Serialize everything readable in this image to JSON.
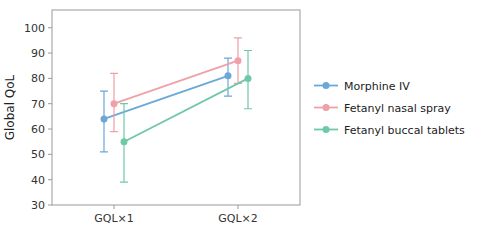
{
  "chart_data": {
    "type": "line",
    "marker": "circle",
    "grid": false,
    "legend": "right",
    "ylabel": "Global QoL",
    "categories": [
      "GQL×1",
      "GQL×2"
    ],
    "ylim": [
      30,
      107
    ],
    "yticks": [
      30,
      40,
      50,
      60,
      70,
      80,
      90,
      100
    ],
    "series": [
      {
        "name": "Morphine IV",
        "color": "#6aa8d8",
        "values": [
          64,
          81
        ],
        "ci_low": [
          51,
          73
        ],
        "ci_high": [
          75,
          88
        ]
      },
      {
        "name": "Fetanyl nasal spray",
        "color": "#f0a0a8",
        "values": [
          70,
          87
        ],
        "ci_low": [
          59,
          78
        ],
        "ci_high": [
          82,
          96
        ]
      },
      {
        "name": "Fetanyl buccal tablets",
        "color": "#70c8a8",
        "values": [
          55,
          80
        ],
        "ci_low": [
          39,
          68
        ],
        "ci_high": [
          70,
          91
        ]
      }
    ]
  }
}
